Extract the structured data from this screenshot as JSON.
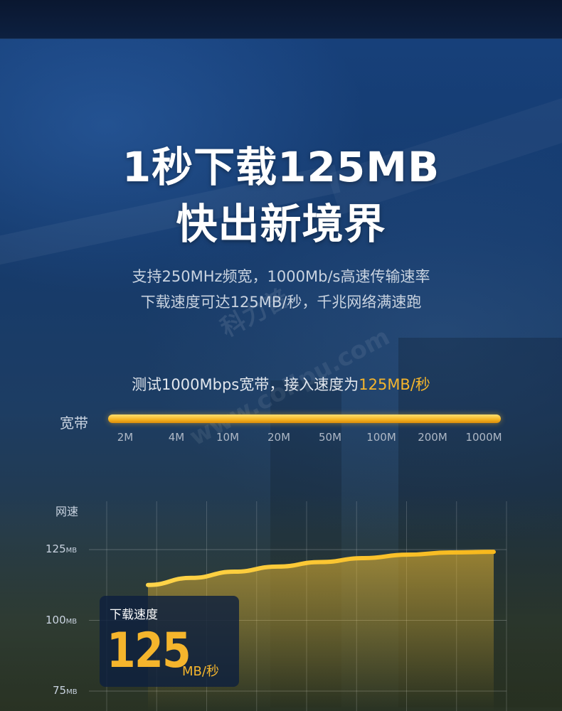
{
  "headline": {
    "line1": "1秒下载125MB",
    "line2": "快出新境界"
  },
  "description": {
    "line1": "支持250MHz频宽，1000Mb/s高速传输速率",
    "line2": "下载速度可达125MB/秒，千兆网络满速跑"
  },
  "watermark": {
    "text1": "科力普",
    "text2": "www.colipu.com"
  },
  "test": {
    "prefix": "测试1000Mbps宽带，接入速度为",
    "highlight": "125MB/秒"
  },
  "bandwidth": {
    "label": "宽带",
    "ticks": [
      "2M",
      "4M",
      "10M",
      "20M",
      "50M",
      "100M",
      "200M",
      "1000M"
    ]
  },
  "speed_card": {
    "label": "下载速度",
    "value": "125",
    "unit": "MB/秒"
  },
  "colors": {
    "accent": "#f5b52c",
    "background": "#153a6c"
  },
  "chart_data": {
    "type": "area",
    "ylabel": "网速",
    "y_ticks": [
      {
        "value": "125",
        "unit": "MB"
      },
      {
        "value": "100",
        "unit": "MB"
      },
      {
        "value": "75",
        "unit": "MB"
      }
    ],
    "ylim": [
      75,
      125
    ],
    "x_columns": 8,
    "series": [
      {
        "values": [
          112.5,
          115.0,
          117.2,
          119.0,
          120.6,
          122.0,
          123.2,
          124.0,
          124.2
        ]
      }
    ],
    "grid": true
  }
}
